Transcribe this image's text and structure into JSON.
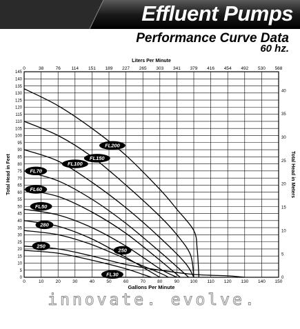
{
  "header": {
    "title": "Effluent Pumps",
    "subtitle": "Performance Curve Data",
    "frequency": "60 hz."
  },
  "footer": {
    "tagline": "innovate. evolve."
  },
  "chart_data": {
    "type": "line",
    "xlabel": "Gallons Per Minute",
    "x2label": "Liters Per Minute",
    "ylabel": "Total Head in Feet",
    "y2label": "Total Head in Meters",
    "xlim": [
      0,
      150
    ],
    "ylim": [
      0,
      145
    ],
    "y2lim": [
      0,
      44
    ],
    "x_ticks": [
      0,
      10,
      20,
      30,
      40,
      50,
      60,
      70,
      80,
      90,
      100,
      110,
      120,
      130,
      140,
      150
    ],
    "x2_ticks": [
      "0",
      "38",
      "76",
      "114",
      "151",
      "189",
      "227",
      "265",
      "303",
      "341",
      "379",
      "416",
      "454",
      "492",
      "530",
      "568"
    ],
    "y_ticks": [
      0,
      5,
      10,
      15,
      20,
      25,
      30,
      35,
      40,
      45,
      50,
      55,
      60,
      65,
      70,
      75,
      80,
      85,
      90,
      95,
      100,
      105,
      110,
      115,
      120,
      125,
      130,
      135,
      140,
      145
    ],
    "y2_ticks": [
      0,
      5,
      10,
      15,
      20,
      25,
      30,
      35,
      40
    ],
    "grid": true,
    "series": [
      {
        "name": "FL200",
        "label_at": [
          52,
          93
        ],
        "points": [
          [
            0,
            133
          ],
          [
            20,
            121
          ],
          [
            40,
            105
          ],
          [
            60,
            86
          ],
          [
            80,
            62
          ],
          [
            90,
            48
          ],
          [
            100,
            33
          ],
          [
            102,
            20
          ],
          [
            103,
            0
          ]
        ]
      },
      {
        "name": "FL150",
        "label_at": [
          43,
          84
        ],
        "points": [
          [
            0,
            110
          ],
          [
            20,
            100
          ],
          [
            40,
            85
          ],
          [
            60,
            65
          ],
          [
            80,
            43
          ],
          [
            90,
            30
          ],
          [
            98,
            16
          ],
          [
            100,
            0
          ]
        ]
      },
      {
        "name": "FL100",
        "label_at": [
          30,
          80
        ],
        "points": [
          [
            0,
            90
          ],
          [
            20,
            82
          ],
          [
            40,
            67
          ],
          [
            60,
            49
          ],
          [
            80,
            28
          ],
          [
            95,
            10
          ],
          [
            100,
            0
          ]
        ]
      },
      {
        "name": "FL70",
        "label_at": [
          7,
          75
        ],
        "points": [
          [
            0,
            75
          ],
          [
            20,
            68
          ],
          [
            40,
            55
          ],
          [
            60,
            38
          ],
          [
            80,
            18
          ],
          [
            97,
            0
          ]
        ]
      },
      {
        "name": "FL60",
        "label_at": [
          7,
          62
        ],
        "points": [
          [
            0,
            62
          ],
          [
            20,
            57
          ],
          [
            40,
            46
          ],
          [
            60,
            31
          ],
          [
            80,
            12
          ],
          [
            92,
            0
          ]
        ]
      },
      {
        "name": "FL50",
        "label_at": [
          10,
          50
        ],
        "points": [
          [
            0,
            48
          ],
          [
            20,
            44
          ],
          [
            40,
            35
          ],
          [
            60,
            22
          ],
          [
            80,
            6
          ],
          [
            90,
            0
          ]
        ]
      },
      {
        "name": "280",
        "label_at": [
          12,
          37
        ],
        "points": [
          [
            0,
            40
          ],
          [
            20,
            36
          ],
          [
            40,
            27
          ],
          [
            60,
            14
          ],
          [
            70,
            7
          ],
          [
            80,
            0
          ]
        ]
      },
      {
        "name": "250",
        "label_at": [
          58,
          19
        ],
        "points": [
          [
            0,
            33
          ],
          [
            20,
            30
          ],
          [
            40,
            23
          ],
          [
            60,
            13
          ],
          [
            80,
            3
          ],
          [
            85,
            0
          ]
        ]
      },
      {
        "name": "FL30",
        "label_at": [
          52,
          2
        ],
        "points": [
          [
            0,
            19
          ],
          [
            20,
            17
          ],
          [
            40,
            12
          ],
          [
            60,
            6
          ],
          [
            70,
            2
          ],
          [
            75,
            0
          ]
        ]
      },
      {
        "name": "",
        "points": [
          [
            0,
            22
          ],
          [
            20,
            20
          ],
          [
            40,
            15
          ],
          [
            60,
            9
          ],
          [
            80,
            5
          ],
          [
            100,
            2
          ],
          [
            120,
            1
          ],
          [
            130,
            0
          ]
        ]
      }
    ],
    "extra_labels": [
      {
        "text": "250",
        "at": [
          10,
          22
        ]
      }
    ]
  }
}
